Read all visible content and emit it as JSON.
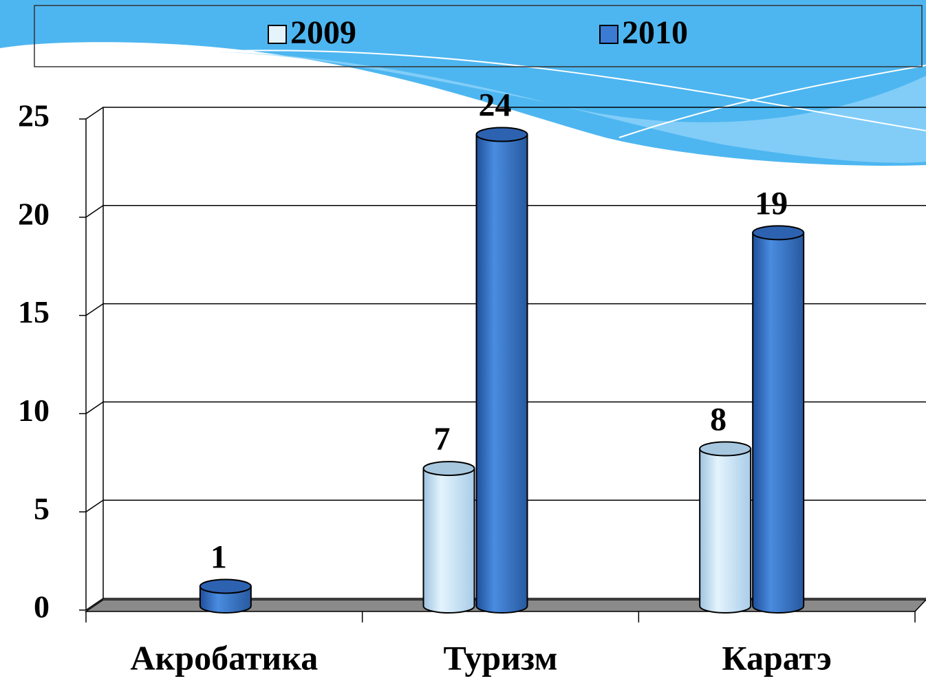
{
  "chart_data": {
    "type": "bar3d",
    "categories": [
      "Акробатика",
      "Туризм",
      "Каратэ"
    ],
    "series": [
      {
        "name": "2009",
        "color": "#cfe9fa",
        "values": [
          null,
          7,
          8
        ]
      },
      {
        "name": "2010",
        "color": "#3c7bd4",
        "values": [
          1,
          24,
          19
        ]
      }
    ],
    "ylim": [
      0,
      25
    ],
    "yticks": [
      0,
      5,
      10,
      15,
      20,
      25
    ],
    "grid": true,
    "legend": "top"
  }
}
